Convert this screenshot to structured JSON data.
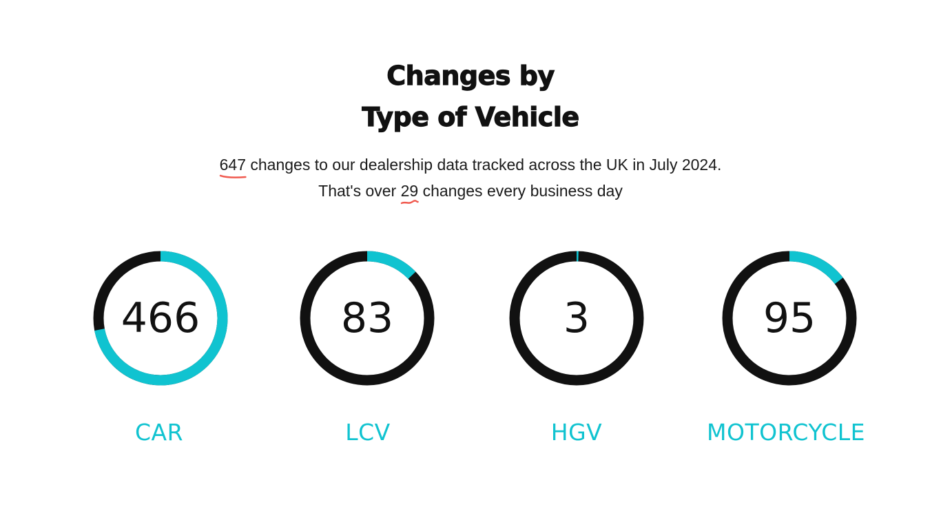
{
  "header": {
    "title_line1": "Changes by",
    "title_line2": "Type of Vehicle"
  },
  "summary": {
    "total": "647",
    "line1_rest": " changes to our dealership data tracked across the UK in July 2024.",
    "line2_prefix": "That's over ",
    "per_day": "29",
    "line2_suffix": " changes every business day"
  },
  "colors": {
    "accent": "#10c3d0",
    "ring_dark": "#111111",
    "highlight_underline": "#f05a4f"
  },
  "vehicle_types": [
    {
      "label": "CAR",
      "value": "466",
      "count": 466
    },
    {
      "label": "LCV",
      "value": "83",
      "count": 83
    },
    {
      "label": "HGV",
      "value": "3",
      "count": 3
    },
    {
      "label": "MOTORCYCLE",
      "value": "95",
      "count": 95
    }
  ],
  "total_count": 647
}
